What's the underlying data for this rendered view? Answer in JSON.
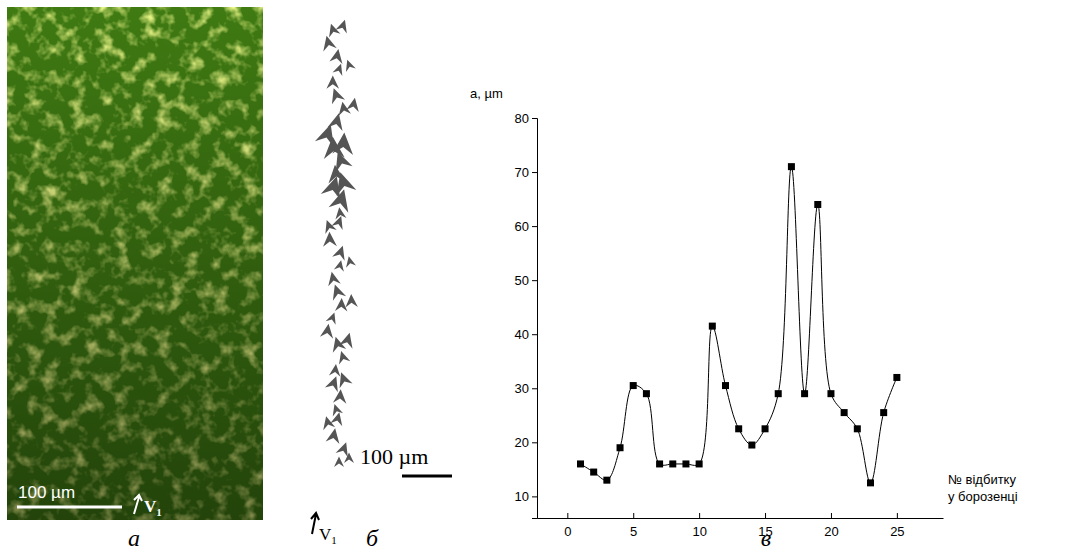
{
  "panels": [
    {
      "letter": "а",
      "scale_label": "100 µm",
      "arrow_label": "V",
      "arrow_index": "1"
    },
    {
      "letter": "б",
      "scale_label": "100 µm",
      "arrow_label": "V",
      "arrow_index": "1"
    },
    {
      "letter": "в"
    }
  ],
  "chart_data": {
    "type": "line",
    "y_label": "a, µm",
    "x_label": "№ відбитку у борозенці",
    "x": [
      1,
      2,
      3,
      4,
      5,
      6,
      7,
      8,
      9,
      10,
      11,
      12,
      13,
      14,
      15,
      16,
      17,
      18,
      19,
      20,
      21,
      22,
      23,
      24,
      25
    ],
    "values": [
      16,
      14.5,
      13,
      19,
      30.5,
      29,
      16,
      16,
      16,
      16,
      41.5,
      30.5,
      22.5,
      19.5,
      22.5,
      29,
      71,
      29,
      64,
      29,
      25.5,
      22.5,
      12.5,
      25.5,
      32
    ],
    "xlim": [
      -2.3,
      28.5
    ],
    "ylim": [
      6,
      80
    ],
    "xticks": [
      0,
      5,
      10,
      15,
      20,
      25
    ],
    "yticks": [
      10,
      20,
      30,
      40,
      50,
      60,
      70,
      80
    ],
    "color": "#000000",
    "marker": "square",
    "line_style": "solid",
    "grid": false
  }
}
